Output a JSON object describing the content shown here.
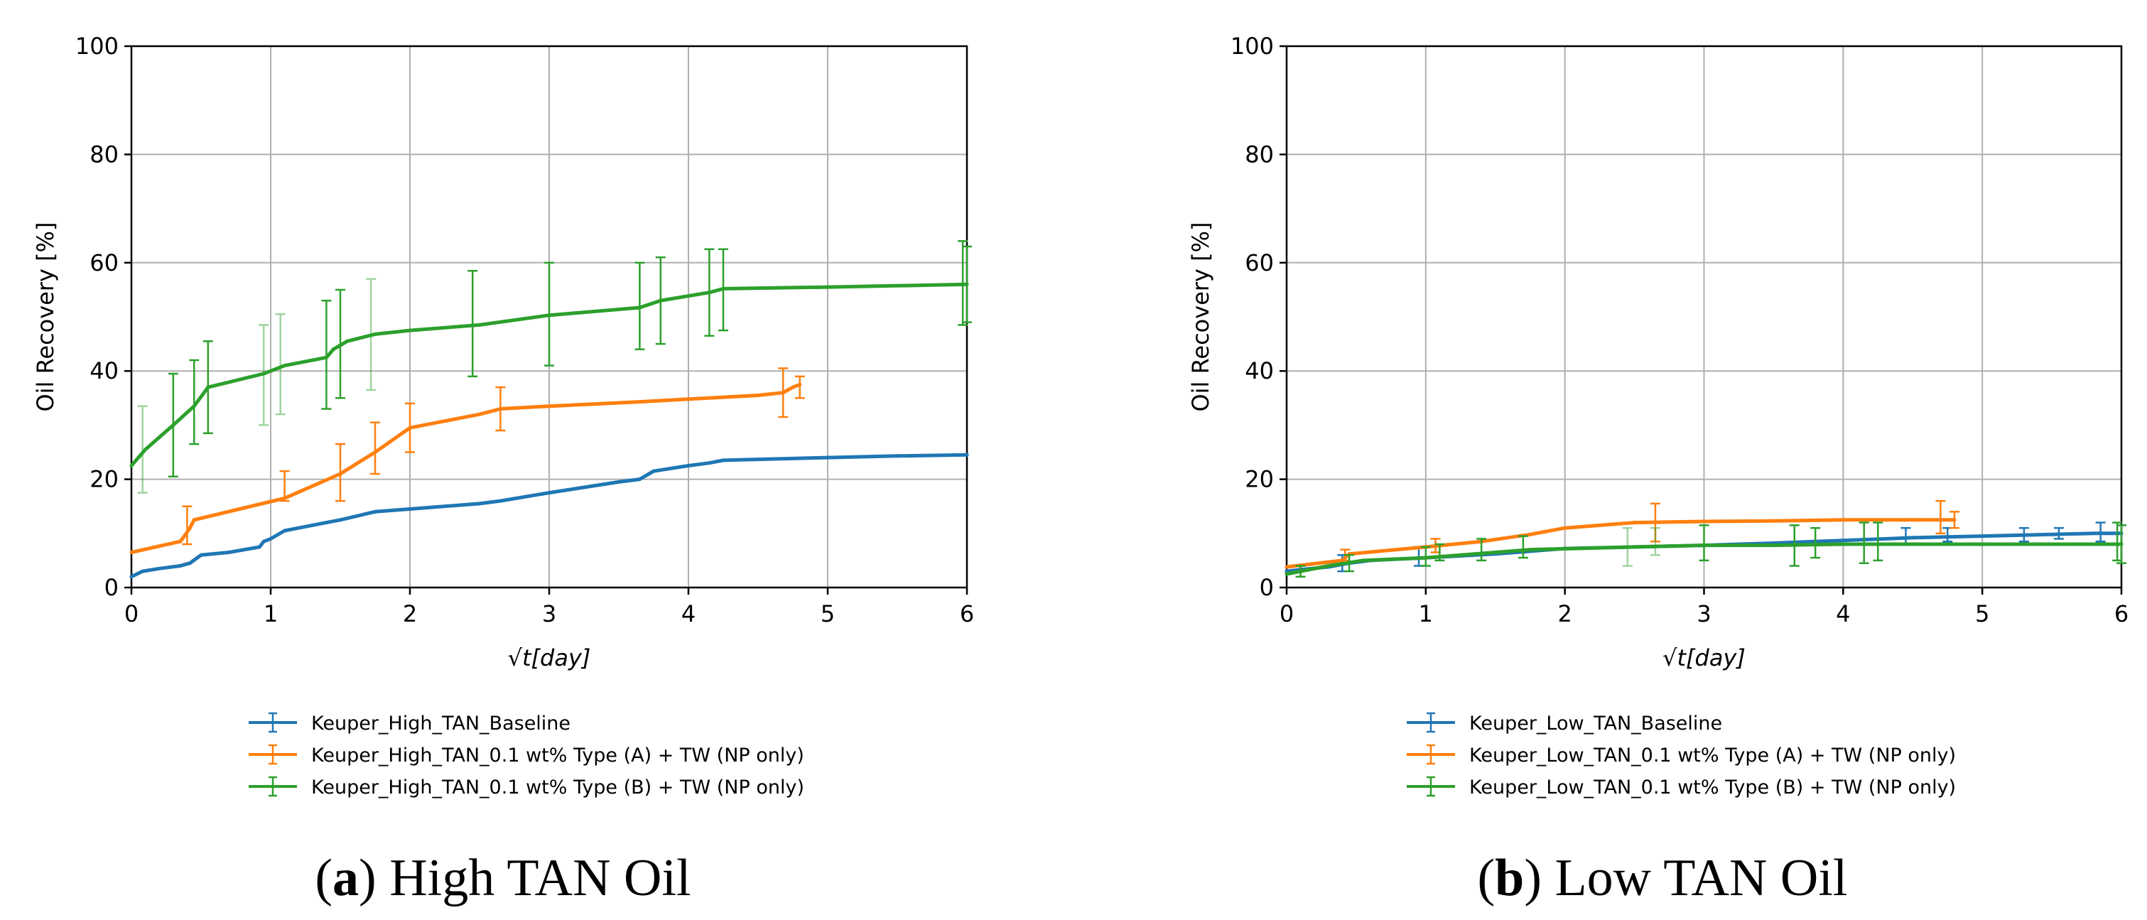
{
  "chart_data": [
    {
      "type": "line",
      "caption": {
        "letter": "a",
        "text": "High TAN Oil"
      },
      "ylabel": "Oil Recovery [%]",
      "xlabel": "√t[day]",
      "xlim": [
        0,
        6
      ],
      "ylim": [
        0,
        100
      ],
      "xticks": [
        "0",
        "1",
        "2",
        "3",
        "4",
        "5",
        "6"
      ],
      "yticks": [
        "0",
        "20",
        "40",
        "60",
        "80",
        "100"
      ],
      "grid": true,
      "legend_position": "bottom",
      "series": [
        {
          "name": "Keuper_High_TAN_Baseline",
          "color": "#1f77b4",
          "x": [
            0,
            0.08,
            0.2,
            0.35,
            0.42,
            0.5,
            0.7,
            0.92,
            0.95,
            1.0,
            1.1,
            1.4,
            1.5,
            1.75,
            2.0,
            2.5,
            2.65,
            3.0,
            3.5,
            3.65,
            3.75,
            4.0,
            4.15,
            4.25,
            5.0,
            5.5,
            6.0
          ],
          "y": [
            2,
            3,
            3.5,
            4,
            4.5,
            6,
            6.5,
            7.5,
            8.5,
            9,
            10.5,
            12,
            12.5,
            14,
            14.5,
            15.5,
            16,
            17.5,
            19.5,
            20,
            21.5,
            22.5,
            23,
            23.5,
            24,
            24.3,
            24.5
          ],
          "errors": []
        },
        {
          "name": "Keuper_High_TAN_0.1 wt% Type (A) + TW (NP only)",
          "color": "#ff7f0e",
          "x": [
            0,
            0.35,
            0.38,
            0.42,
            0.45,
            1.1,
            1.5,
            1.75,
            2.0,
            2.5,
            2.65,
            3.0,
            3.65,
            4.0,
            4.5,
            4.68,
            4.75,
            4.8
          ],
          "y": [
            6.5,
            8.5,
            9.5,
            11,
            12.5,
            16.5,
            21,
            25,
            29.5,
            32,
            33,
            33.5,
            34.3,
            34.8,
            35.5,
            36,
            37,
            37.5
          ],
          "errors": [
            {
              "x": 0.4,
              "low": 8,
              "high": 15,
              "light": false
            },
            {
              "x": 1.1,
              "low": 16,
              "high": 21.5,
              "light": false
            },
            {
              "x": 1.5,
              "low": 16,
              "high": 26.5,
              "light": false
            },
            {
              "x": 1.75,
              "low": 21,
              "high": 30.5,
              "light": false
            },
            {
              "x": 2.0,
              "low": 25,
              "high": 34,
              "light": false
            },
            {
              "x": 2.65,
              "low": 29,
              "high": 37,
              "light": false
            },
            {
              "x": 4.68,
              "low": 31.5,
              "high": 40.5,
              "light": false
            },
            {
              "x": 4.8,
              "low": 35,
              "high": 39,
              "light": false
            }
          ]
        },
        {
          "name": "Keuper_High_TAN_0.1 wt% Type (B) + TW (NP only)",
          "color": "#2ca02c",
          "x": [
            0,
            0.1,
            0.3,
            0.45,
            0.55,
            0.95,
            1.1,
            1.4,
            1.45,
            1.55,
            1.75,
            2.0,
            2.5,
            3.0,
            3.65,
            3.8,
            4.15,
            4.25,
            5.0,
            6.0
          ],
          "y": [
            22.5,
            25.5,
            30,
            33.5,
            37,
            39.5,
            41,
            42.5,
            44,
            45.5,
            46.8,
            47.5,
            48.5,
            50.3,
            51.7,
            53,
            54.5,
            55.2,
            55.5,
            56
          ],
          "errors": [
            {
              "x": 0.08,
              "low": 17.5,
              "high": 33.5,
              "light": true
            },
            {
              "x": 0.3,
              "low": 20.5,
              "high": 39.5,
              "light": false
            },
            {
              "x": 0.45,
              "low": 26.5,
              "high": 42,
              "light": false
            },
            {
              "x": 0.55,
              "low": 28.5,
              "high": 45.5,
              "light": false
            },
            {
              "x": 0.95,
              "low": 30,
              "high": 48.5,
              "light": true
            },
            {
              "x": 1.07,
              "low": 32,
              "high": 50.5,
              "light": true
            },
            {
              "x": 1.4,
              "low": 33,
              "high": 53,
              "light": false
            },
            {
              "x": 1.5,
              "low": 35,
              "high": 55,
              "light": false
            },
            {
              "x": 1.72,
              "low": 36.5,
              "high": 57,
              "light": true
            },
            {
              "x": 2.45,
              "low": 39,
              "high": 58.5,
              "light": false
            },
            {
              "x": 3.0,
              "low": 41,
              "high": 60,
              "light": false
            },
            {
              "x": 3.65,
              "low": 44,
              "high": 60,
              "light": false
            },
            {
              "x": 3.8,
              "low": 45,
              "high": 61,
              "light": false
            },
            {
              "x": 4.15,
              "low": 46.5,
              "high": 62.5,
              "light": false
            },
            {
              "x": 4.25,
              "low": 47.5,
              "high": 62.5,
              "light": false
            },
            {
              "x": 5.97,
              "low": 48.5,
              "high": 64,
              "light": false
            },
            {
              "x": 6.0,
              "low": 49,
              "high": 63,
              "light": false
            }
          ]
        }
      ]
    },
    {
      "type": "line",
      "caption": {
        "letter": "b",
        "text": "Low TAN Oil"
      },
      "ylabel": "Oil Recovery [%]",
      "xlabel": "√t[day]",
      "xlim": [
        0,
        6
      ],
      "ylim": [
        0,
        100
      ],
      "xticks": [
        "0",
        "1",
        "2",
        "3",
        "4",
        "5",
        "6"
      ],
      "yticks": [
        "0",
        "20",
        "40",
        "60",
        "80",
        "100"
      ],
      "grid": true,
      "legend_position": "bottom",
      "series": [
        {
          "name": "Keuper_Low_TAN_Baseline",
          "color": "#1f77b4",
          "x": [
            0,
            0.1,
            0.3,
            0.45,
            0.6,
            1.0,
            1.5,
            2.0,
            2.5,
            3.0,
            3.5,
            4.0,
            4.5,
            5.0,
            5.5,
            5.8,
            6.0
          ],
          "y": [
            3,
            3.3,
            3.8,
            4.5,
            5,
            5.5,
            6.2,
            7.2,
            7.5,
            7.8,
            8.2,
            8.7,
            9.2,
            9.5,
            9.8,
            10,
            10
          ],
          "errors": [
            {
              "x": 0.4,
              "low": 3,
              "high": 6,
              "light": false
            },
            {
              "x": 0.95,
              "low": 4,
              "high": 7.5,
              "light": false
            },
            {
              "x": 4.45,
              "low": 8,
              "high": 11,
              "light": false
            },
            {
              "x": 4.75,
              "low": 8.5,
              "high": 11,
              "light": false
            },
            {
              "x": 5.3,
              "low": 8.5,
              "high": 11,
              "light": false
            },
            {
              "x": 5.55,
              "low": 9,
              "high": 11,
              "light": false
            },
            {
              "x": 5.85,
              "low": 8.5,
              "high": 12,
              "light": false
            }
          ]
        },
        {
          "name": "Keuper_Low_TAN_0.1 wt% Type (A) + TW (NP only)",
          "color": "#ff7f0e",
          "x": [
            0,
            0.4,
            0.45,
            1.0,
            1.4,
            1.75,
            2.0,
            2.5,
            3.0,
            3.5,
            4.0,
            4.5,
            4.8
          ],
          "y": [
            3.8,
            5,
            6.2,
            7.5,
            8.5,
            9.8,
            11,
            12,
            12.2,
            12.3,
            12.5,
            12.5,
            12.5
          ],
          "errors": [
            {
              "x": 0.42,
              "low": 5,
              "high": 7,
              "light": false
            },
            {
              "x": 1.07,
              "low": 6.5,
              "high": 9,
              "light": false
            },
            {
              "x": 2.65,
              "low": 8.5,
              "high": 15.5,
              "light": false
            },
            {
              "x": 4.7,
              "low": 10,
              "high": 16,
              "light": false
            },
            {
              "x": 4.8,
              "low": 11,
              "high": 14,
              "light": false
            }
          ]
        },
        {
          "name": "Keuper_Low_TAN_0.1 wt% Type (B) + TW (NP only)",
          "color": "#2ca02c",
          "x": [
            0,
            0.3,
            0.55,
            1.0,
            1.5,
            1.75,
            2.5,
            3.0,
            3.5,
            4.0,
            4.5,
            5.0,
            6.0
          ],
          "y": [
            2.5,
            4,
            5,
            5.5,
            6.5,
            7,
            7.5,
            7.8,
            7.8,
            8,
            8,
            8,
            8
          ],
          "errors": [
            {
              "x": 0.1,
              "low": 2,
              "high": 4,
              "light": false
            },
            {
              "x": 0.45,
              "low": 3,
              "high": 6,
              "light": false
            },
            {
              "x": 1.0,
              "low": 4,
              "high": 7.5,
              "light": false
            },
            {
              "x": 1.1,
              "low": 5,
              "high": 8,
              "light": false
            },
            {
              "x": 1.4,
              "low": 5,
              "high": 9,
              "light": false
            },
            {
              "x": 1.7,
              "low": 5.5,
              "high": 9.5,
              "light": false
            },
            {
              "x": 2.45,
              "low": 4,
              "high": 11,
              "light": true
            },
            {
              "x": 2.65,
              "low": 6,
              "high": 11,
              "light": true
            },
            {
              "x": 3.0,
              "low": 5,
              "high": 11.5,
              "light": false
            },
            {
              "x": 3.65,
              "low": 4,
              "high": 11.5,
              "light": false
            },
            {
              "x": 3.8,
              "low": 5.5,
              "high": 11,
              "light": false
            },
            {
              "x": 4.15,
              "low": 4.5,
              "high": 12,
              "light": false
            },
            {
              "x": 4.25,
              "low": 5,
              "high": 12,
              "light": false
            },
            {
              "x": 5.97,
              "low": 5,
              "high": 12,
              "light": false
            },
            {
              "x": 6.0,
              "low": 4.5,
              "high": 11.5,
              "light": false
            }
          ]
        }
      ]
    }
  ]
}
